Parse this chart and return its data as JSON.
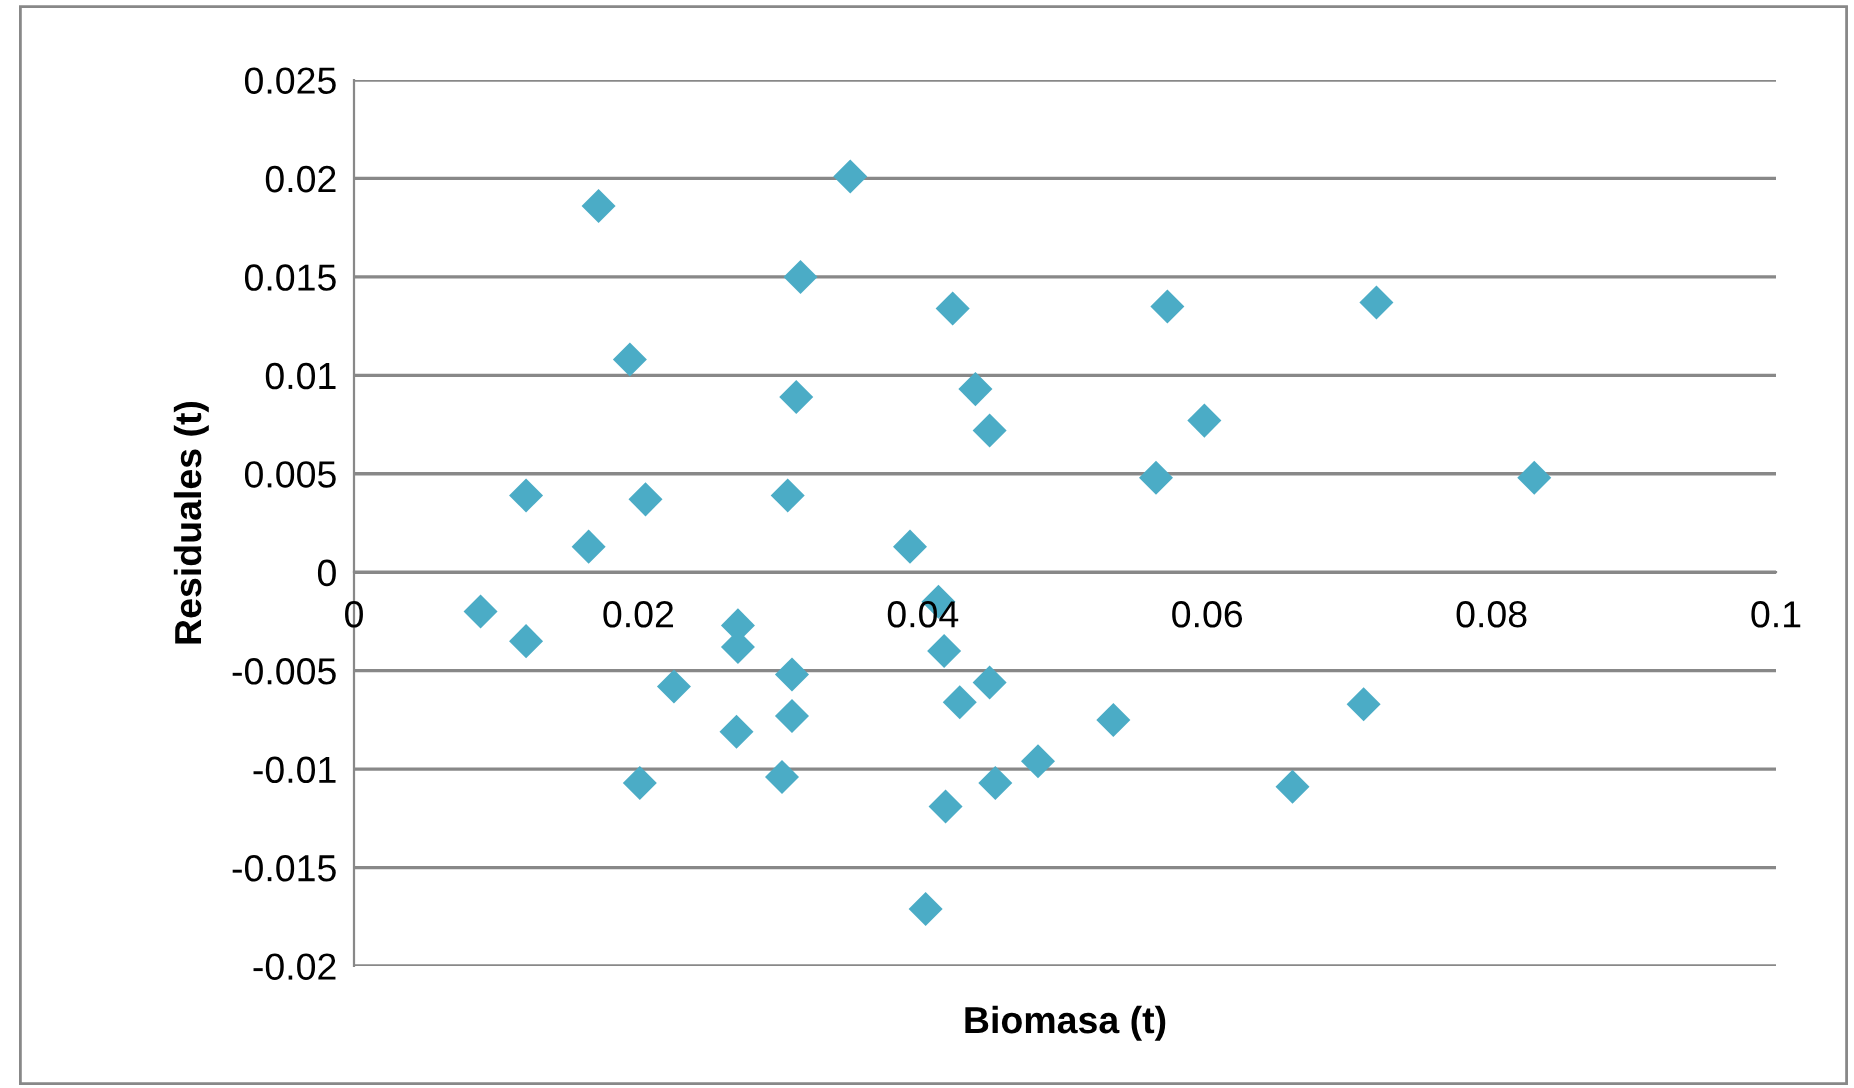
{
  "chart_data": {
    "type": "scatter",
    "xlabel": "Biomasa (t)",
    "ylabel": "Residuales (t)",
    "series": [
      {
        "color": "#4bacc6",
        "x": [
          0.0089,
          0.0121,
          0.0121,
          0.0165,
          0.0172,
          0.0194,
          0.0201,
          0.0205,
          0.0225,
          0.027,
          0.027,
          0.0269,
          0.0301,
          0.0305,
          0.0308,
          0.0308,
          0.0311,
          0.0314,
          0.0349,
          0.0391,
          0.0402,
          0.0411,
          0.0415,
          0.0416,
          0.0421,
          0.0426,
          0.0437,
          0.0447,
          0.0447,
          0.0451,
          0.0481,
          0.0534,
          0.0564,
          0.0572,
          0.0598,
          0.066,
          0.071,
          0.0719,
          0.083
        ],
        "values": [
          -0.002,
          0.0039,
          -0.0035,
          0.0013,
          0.0186,
          0.0108,
          -0.0107,
          0.0037,
          -0.0058,
          -0.0027,
          -0.0038,
          -0.0081,
          -0.0104,
          0.0039,
          -0.0052,
          -0.0073,
          0.0089,
          0.015,
          0.0201,
          0.0013,
          -0.0171,
          -0.0015,
          -0.004,
          -0.0119,
          0.0134,
          -0.0066,
          0.0093,
          0.0072,
          -0.0056,
          -0.0107,
          -0.0096,
          -0.0075,
          0.0048,
          0.0135,
          0.0077,
          -0.0109,
          -0.0067,
          0.0137,
          0.0048
        ]
      }
    ],
    "xlim": [
      0,
      0.1
    ],
    "xticks": [
      0,
      0.02,
      0.04,
      0.06,
      0.08,
      0.1
    ],
    "ylim": [
      -0.02,
      0.025
    ],
    "yticks": [
      -0.02,
      -0.015,
      -0.01,
      -0.005,
      0,
      0.005,
      0.01,
      0.015,
      0.02,
      0.025
    ],
    "grid": "y",
    "marker": "diamond",
    "legend": false
  }
}
